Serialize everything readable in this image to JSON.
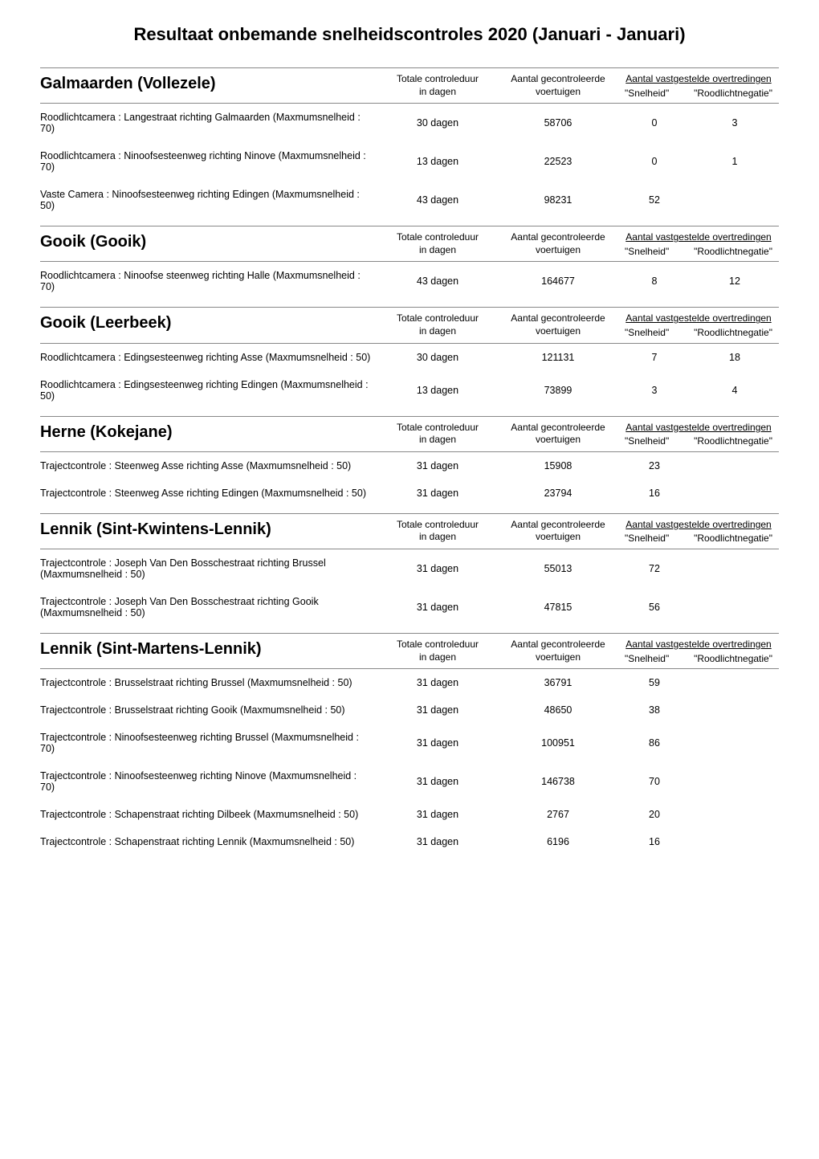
{
  "page_title": "Resultaat onbemande snelheidscontroles 2020 (Januari - Januari)",
  "column_headers": {
    "duration_l1": "Totale controleduur",
    "duration_l2": "in dagen",
    "count_l1": "Aantal gecontroleerde",
    "count_l2": "voertuigen",
    "violations_top": "Aantal vastgestelde overtredingen",
    "violations_sub_speed": "\"Snelheid\"",
    "violations_sub_redlight": "\"Roodlichtnegatie\""
  },
  "sections": [
    {
      "location": "Galmaarden (Vollezele)",
      "rows": [
        {
          "camera": "Roodlichtcamera : Langestraat richting Galmaarden (Maxmumsnelheid : 70)",
          "duration": "30 dagen",
          "count": "58706",
          "speed": "0",
          "redlight": "3"
        },
        {
          "camera": "Roodlichtcamera : Ninoofsesteenweg richting Ninove (Maxmumsnelheid : 70)",
          "duration": "13 dagen",
          "count": "22523",
          "speed": "0",
          "redlight": "1"
        },
        {
          "camera": "Vaste Camera : Ninoofsesteenweg richting Edingen (Maxmumsnelheid : 50)",
          "duration": "43 dagen",
          "count": "98231",
          "speed": "52",
          "redlight": ""
        }
      ]
    },
    {
      "location": "Gooik (Gooik)",
      "rows": [
        {
          "camera": "Roodlichtcamera : Ninoofse steenweg richting Halle (Maxmumsnelheid : 70)",
          "duration": "43 dagen",
          "count": "164677",
          "speed": "8",
          "redlight": "12"
        }
      ]
    },
    {
      "location": "Gooik (Leerbeek)",
      "rows": [
        {
          "camera": "Roodlichtcamera : Edingsesteenweg richting Asse (Maxmumsnelheid : 50)",
          "duration": "30 dagen",
          "count": "121131",
          "speed": "7",
          "redlight": "18"
        },
        {
          "camera": "Roodlichtcamera : Edingsesteenweg richting Edingen (Maxmumsnelheid : 50)",
          "duration": "13 dagen",
          "count": "73899",
          "speed": "3",
          "redlight": "4"
        }
      ]
    },
    {
      "location": "Herne (Kokejane)",
      "rows": [
        {
          "camera": "Trajectcontrole : Steenweg Asse richting Asse (Maxmumsnelheid : 50)",
          "duration": "31 dagen",
          "count": "15908",
          "speed": "23",
          "redlight": ""
        },
        {
          "camera": "Trajectcontrole : Steenweg Asse richting Edingen (Maxmumsnelheid : 50)",
          "duration": "31 dagen",
          "count": "23794",
          "speed": "16",
          "redlight": ""
        }
      ]
    },
    {
      "location": "Lennik (Sint-Kwintens-Lennik)",
      "rows": [
        {
          "camera": "Trajectcontrole : Joseph Van Den Bosschestraat richting Brussel (Maxmumsnelheid : 50)",
          "duration": "31 dagen",
          "count": "55013",
          "speed": "72",
          "redlight": ""
        },
        {
          "camera": "Trajectcontrole : Joseph Van Den Bosschestraat richting Gooik (Maxmumsnelheid : 50)",
          "duration": "31 dagen",
          "count": "47815",
          "speed": "56",
          "redlight": ""
        }
      ]
    },
    {
      "location": "Lennik (Sint-Martens-Lennik)",
      "rows": [
        {
          "camera": "Trajectcontrole : Brusselstraat richting Brussel (Maxmumsnelheid : 50)",
          "duration": "31 dagen",
          "count": "36791",
          "speed": "59",
          "redlight": ""
        },
        {
          "camera": "Trajectcontrole : Brusselstraat richting Gooik (Maxmumsnelheid : 50)",
          "duration": "31 dagen",
          "count": "48650",
          "speed": "38",
          "redlight": ""
        },
        {
          "camera": "Trajectcontrole : Ninoofsesteenweg richting Brussel (Maxmumsnelheid : 70)",
          "duration": "31 dagen",
          "count": "100951",
          "speed": "86",
          "redlight": ""
        },
        {
          "camera": "Trajectcontrole : Ninoofsesteenweg richting Ninove (Maxmumsnelheid : 70)",
          "duration": "31 dagen",
          "count": "146738",
          "speed": "70",
          "redlight": ""
        },
        {
          "camera": "Trajectcontrole : Schapenstraat richting Dilbeek (Maxmumsnelheid : 50)",
          "duration": "31 dagen",
          "count": "2767",
          "speed": "20",
          "redlight": ""
        },
        {
          "camera": "Trajectcontrole : Schapenstraat richting Lennik (Maxmumsnelheid : 50)",
          "duration": "31 dagen",
          "count": "6196",
          "speed": "16",
          "redlight": ""
        }
      ]
    }
  ]
}
